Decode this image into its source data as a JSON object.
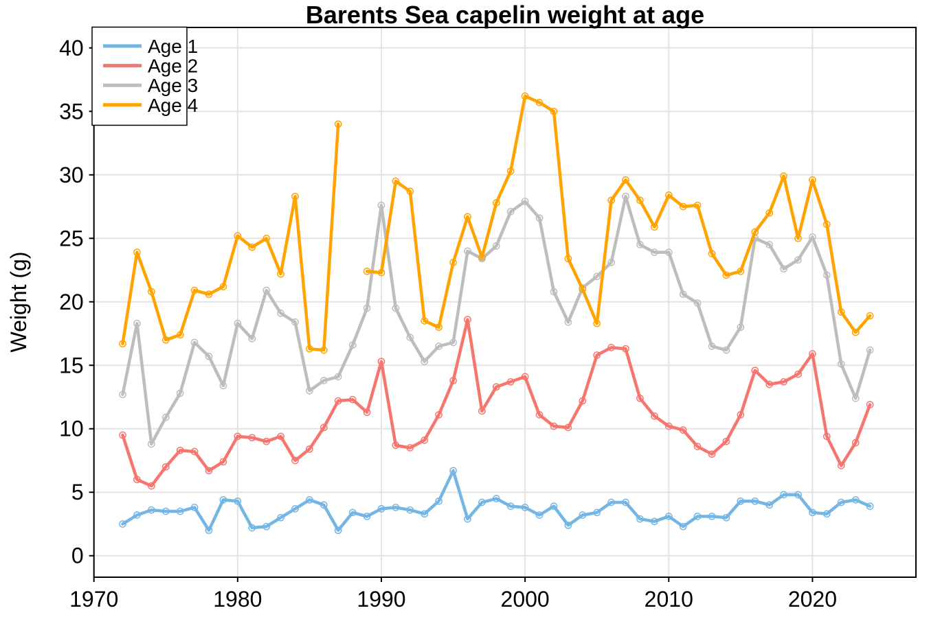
{
  "title": "Barents Sea capelin weight at age",
  "legend": {
    "position": "top-left",
    "entries": [
      {
        "label": "Age 1",
        "color": "#74B5E4"
      },
      {
        "label": "Age 2",
        "color": "#F5766F"
      },
      {
        "label": "Age 3",
        "color": "#BDBDBD"
      },
      {
        "label": "Age 4",
        "color": "#FFA300"
      }
    ]
  },
  "axes": {
    "y_label": "Weight (g)",
    "x_tick_labels": [
      "1970",
      "1980",
      "1990",
      "2000",
      "2010",
      "2020"
    ],
    "y_tick_labels": [
      "0",
      "5",
      "10",
      "15",
      "20",
      "25",
      "30",
      "35",
      "40"
    ]
  },
  "style": {
    "grid_color": "#E3E3E3",
    "border_color": "#000000",
    "background": "#FFFFFF"
  },
  "chart_data": {
    "type": "line",
    "title": "Barents Sea capelin weight at age",
    "xlabel": "",
    "ylabel": "Weight (g)",
    "grid": true,
    "legend_position": "top-left",
    "xlim": [
      1970,
      2027.2
    ],
    "ylim": [
      -1.69,
      41.61
    ],
    "x_ticks": [
      1970,
      1980,
      1990,
      2000,
      2010,
      2020
    ],
    "y_ticks": [
      0,
      5,
      10,
      15,
      20,
      25,
      30,
      35,
      40
    ],
    "x": [
      1972,
      1973,
      1974,
      1975,
      1976,
      1977,
      1978,
      1979,
      1980,
      1981,
      1982,
      1983,
      1984,
      1985,
      1986,
      1987,
      1988,
      1989,
      1990,
      1991,
      1992,
      1993,
      1994,
      1995,
      1996,
      1997,
      1998,
      1999,
      2000,
      2001,
      2002,
      2003,
      2004,
      2005,
      2006,
      2007,
      2008,
      2009,
      2010,
      2011,
      2012,
      2013,
      2014,
      2015,
      2016,
      2017,
      2018,
      2019,
      2020,
      2021,
      2022,
      2023,
      2024
    ],
    "series": [
      {
        "name": "Age 1",
        "color": "#74B5E4",
        "values": [
          2.5,
          3.2,
          3.6,
          3.5,
          3.5,
          3.8,
          2.0,
          4.4,
          4.3,
          2.2,
          2.3,
          3.0,
          3.7,
          4.4,
          4.0,
          2.0,
          3.4,
          3.1,
          3.7,
          3.8,
          3.6,
          3.3,
          4.3,
          6.7,
          2.9,
          4.2,
          4.5,
          3.9,
          3.8,
          3.2,
          3.9,
          2.4,
          3.2,
          3.4,
          4.2,
          4.2,
          2.9,
          2.7,
          3.1,
          2.3,
          3.1,
          3.1,
          3.0,
          4.3,
          4.3,
          4.0,
          4.8,
          4.8,
          3.4,
          3.3,
          4.2,
          4.4,
          3.9
        ]
      },
      {
        "name": "Age 2",
        "color": "#F5766F",
        "values": [
          9.5,
          6.0,
          5.5,
          7.0,
          8.3,
          8.2,
          6.7,
          7.4,
          9.4,
          9.3,
          9.0,
          9.4,
          7.5,
          8.4,
          10.1,
          12.2,
          12.3,
          11.3,
          15.3,
          8.7,
          8.5,
          9.1,
          11.1,
          13.8,
          18.6,
          11.4,
          13.3,
          13.7,
          14.1,
          11.1,
          10.2,
          10.1,
          12.2,
          15.8,
          16.4,
          16.3,
          12.4,
          11.0,
          10.2,
          9.9,
          8.6,
          8.0,
          9.0,
          11.1,
          14.6,
          13.5,
          13.7,
          14.3,
          15.9,
          9.4,
          7.1,
          8.9,
          11.9
        ]
      },
      {
        "name": "Age 3",
        "color": "#BDBDBD",
        "values": [
          12.7,
          18.3,
          8.8,
          10.9,
          12.8,
          16.8,
          15.7,
          13.4,
          18.3,
          17.1,
          20.9,
          19.1,
          18.4,
          13.0,
          13.8,
          14.1,
          16.6,
          19.5,
          27.6,
          19.5,
          17.2,
          15.3,
          16.5,
          16.8,
          24.0,
          23.4,
          24.4,
          27.1,
          27.9,
          26.6,
          20.8,
          18.4,
          21.1,
          22.0,
          23.1,
          28.3,
          24.5,
          23.9,
          23.9,
          20.6,
          19.9,
          16.5,
          16.2,
          18.0,
          25.0,
          24.5,
          22.6,
          23.3,
          25.1,
          22.1,
          15.1,
          12.4,
          16.2
        ]
      },
      {
        "name": "Age 4",
        "color": "#FFA300",
        "values": [
          16.7,
          23.9,
          20.8,
          17.0,
          17.4,
          20.9,
          20.6,
          21.2,
          25.2,
          24.3,
          25.0,
          22.2,
          28.3,
          16.3,
          16.2,
          34.0,
          null,
          22.4,
          22.3,
          29.5,
          28.7,
          18.5,
          18.0,
          23.1,
          26.7,
          23.5,
          27.8,
          30.3,
          36.2,
          35.7,
          35.0,
          23.4,
          21.0,
          18.3,
          28.0,
          29.6,
          28.0,
          25.9,
          28.4,
          27.5,
          27.6,
          23.8,
          22.1,
          22.4,
          25.5,
          27.0,
          29.9,
          25.0,
          29.6,
          26.1,
          19.2,
          17.6,
          18.9
        ]
      }
    ]
  }
}
